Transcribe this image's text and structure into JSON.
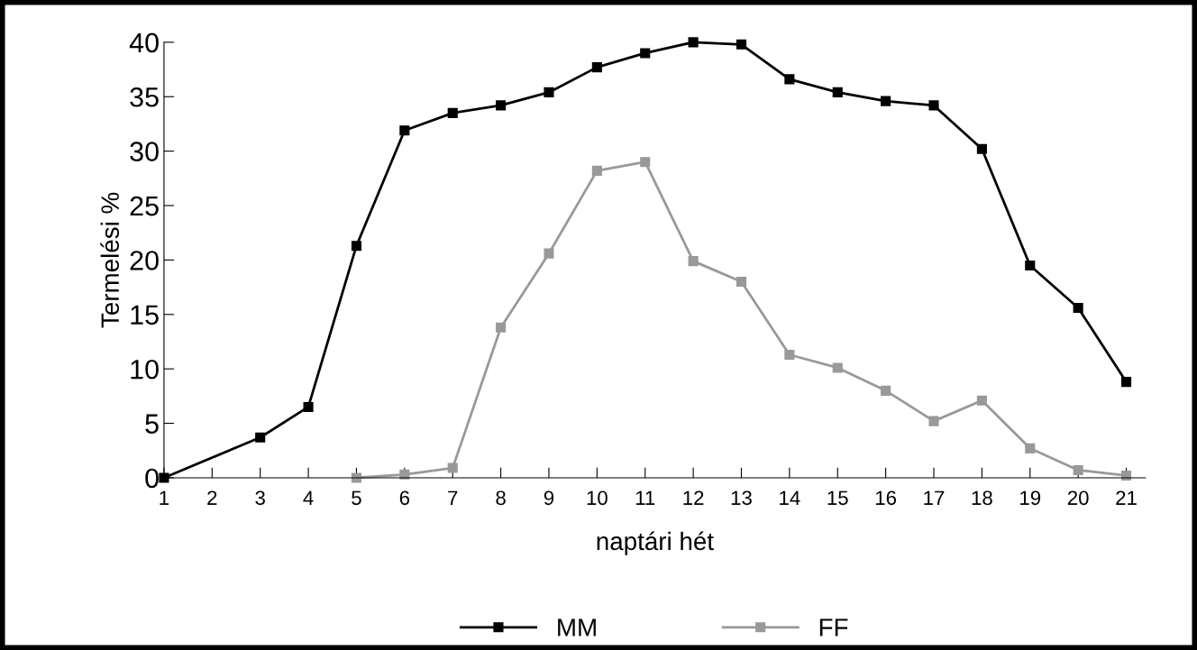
{
  "chart_data": {
    "type": "line",
    "xlabel": "naptári hét",
    "ylabel": "Termelési %",
    "series": [
      {
        "name": "MM",
        "color": "#000000",
        "x": [
          1,
          3,
          4,
          5,
          6,
          7,
          8,
          9,
          10,
          11,
          12,
          13,
          14,
          15,
          16,
          17,
          18,
          19,
          20,
          21
        ],
        "values": [
          0,
          3.7,
          6.5,
          21.3,
          31.9,
          33.5,
          34.2,
          35.4,
          37.7,
          39.0,
          40.0,
          39.8,
          36.6,
          35.4,
          34.6,
          34.2,
          30.2,
          19.5,
          15.6,
          8.8
        ]
      },
      {
        "name": "FF",
        "color": "#999999",
        "x": [
          5,
          6,
          7,
          8,
          9,
          10,
          11,
          12,
          13,
          14,
          15,
          16,
          17,
          18,
          19,
          20,
          21
        ],
        "values": [
          0,
          0.3,
          0.9,
          13.8,
          20.6,
          28.2,
          29.0,
          19.9,
          18.0,
          11.3,
          10.1,
          8.0,
          5.2,
          7.1,
          2.7,
          0.7,
          0.2
        ]
      }
    ],
    "xlim": [
      1,
      21.4
    ],
    "ylim": [
      0,
      40
    ],
    "xticks": [
      1,
      2,
      3,
      4,
      5,
      6,
      7,
      8,
      9,
      10,
      11,
      12,
      13,
      14,
      15,
      16,
      17,
      18,
      19,
      20,
      21
    ],
    "yticks": [
      0,
      5,
      10,
      15,
      20,
      25,
      30,
      35,
      40
    ],
    "grid": false,
    "legend": "bottom",
    "marker": "square",
    "line_style": "solid"
  }
}
